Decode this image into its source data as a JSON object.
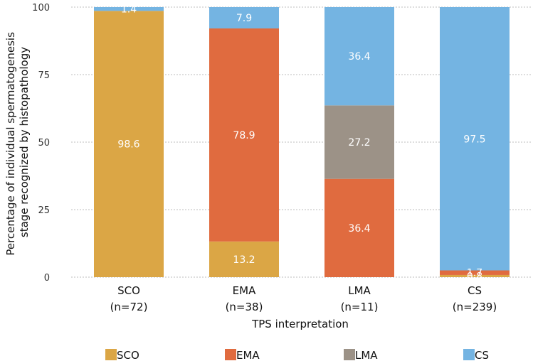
{
  "chart_data": {
    "type": "bar",
    "stacked": true,
    "categories": [
      "SCO",
      "EMA",
      "LMA",
      "CS"
    ],
    "category_counts": [
      "(n=72)",
      "(n=38)",
      "(n=11)",
      "(n=239)"
    ],
    "series": [
      {
        "name": "SCO",
        "color": "#dba645",
        "values": [
          98.6,
          13.2,
          0,
          0.8
        ]
      },
      {
        "name": "EMA",
        "color": "#e06b3f",
        "values": [
          0,
          78.9,
          36.4,
          1.7
        ]
      },
      {
        "name": "LMA",
        "color": "#9c9287",
        "values": [
          0,
          0,
          27.2,
          0
        ]
      },
      {
        "name": "CS",
        "color": "#74b4e2",
        "values": [
          1.4,
          7.9,
          36.4,
          97.5
        ]
      }
    ],
    "data_labels": [
      {
        "category": "SCO",
        "series": "SCO",
        "text": "98.6"
      },
      {
        "category": "SCO",
        "series": "CS",
        "text": "1.4"
      },
      {
        "category": "EMA",
        "series": "SCO",
        "text": "13.2"
      },
      {
        "category": "EMA",
        "series": "EMA",
        "text": "78.9"
      },
      {
        "category": "EMA",
        "series": "CS",
        "text": "7.9"
      },
      {
        "category": "LMA",
        "series": "EMA",
        "text": "36.4"
      },
      {
        "category": "LMA",
        "series": "LMA",
        "text": "27.2"
      },
      {
        "category": "LMA",
        "series": "CS",
        "text": "36.4"
      },
      {
        "category": "CS",
        "series": "SCO",
        "text": "0.8"
      },
      {
        "category": "CS",
        "series": "EMA",
        "text": "1.7"
      },
      {
        "category": "CS",
        "series": "CS",
        "text": "97.5"
      }
    ],
    "title": "",
    "xlabel": "TPS interpretation",
    "ylabel_lines": [
      "Percentage of individual spermatogenesis",
      "stage recognized by histopathology"
    ],
    "ylim": [
      0,
      100
    ],
    "yticks": [
      0,
      25,
      50,
      75,
      100
    ],
    "grid": true,
    "legend_position": "bottom"
  }
}
